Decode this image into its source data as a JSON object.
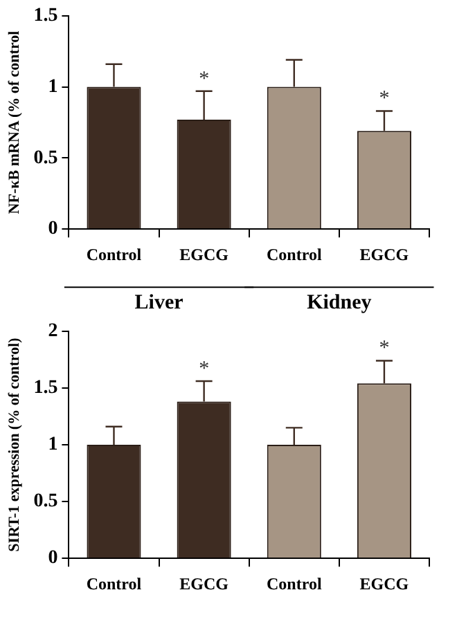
{
  "chart_data": [
    {
      "type": "bar",
      "ylabel": "NF-κB mRNA (% of control",
      "categories": [
        "Control",
        "EGCG",
        "Control",
        "EGCG"
      ],
      "values": [
        1.0,
        0.77,
        1.0,
        0.69
      ],
      "colors": [
        "#3e2c22",
        "#3e2c22",
        "#a69584",
        "#a69584"
      ],
      "errors": [
        [
          1.0,
          1.16
        ],
        [
          0.77,
          0.97
        ],
        [
          1.0,
          1.19
        ],
        [
          0.69,
          0.83
        ]
      ],
      "ylim": [
        0,
        1.5
      ],
      "yticks": [
        0,
        0.5,
        1,
        1.5
      ],
      "value_labels": [
        null,
        "*",
        null,
        "*"
      ],
      "annotations": [
        "Liver",
        "Kidney"
      ]
    },
    {
      "type": "bar",
      "ylabel": "SIRT-1 expression (% of control)",
      "categories": [
        "Control",
        "EGCG",
        "Control",
        "EGCG"
      ],
      "values": [
        1.0,
        1.38,
        1.0,
        1.54
      ],
      "colors": [
        "#3e2c22",
        "#3e2c22",
        "#a69584",
        "#a69584"
      ],
      "errors": [
        [
          1.0,
          1.16
        ],
        [
          1.38,
          1.56
        ],
        [
          1.0,
          1.15
        ],
        [
          1.54,
          1.74
        ]
      ],
      "ylim": [
        0,
        2
      ],
      "yticks": [
        0,
        0.5,
        1,
        1.5,
        2
      ],
      "value_labels": [
        null,
        "*",
        null,
        "*"
      ]
    }
  ]
}
